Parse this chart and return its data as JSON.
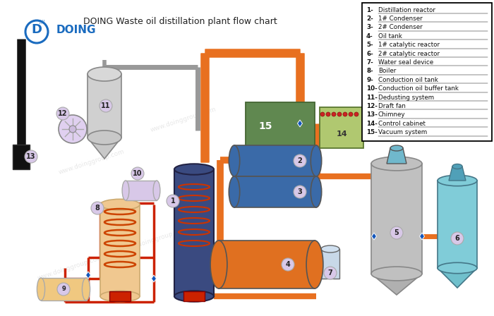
{
  "title": "DOING Waste oil distillation plant flow chart",
  "legend_items": [
    "1-  Distillation reactor",
    "2-  1# Condenser",
    "3-  2# Condenser",
    "4-  Oil tank",
    "5-  1# catalytic reactor",
    "6-  2# catalytic reactor",
    "7-  Water seal device",
    "8-  Boiler",
    "9-  Conduction oil tank",
    "10- Conduction oil buffer tank",
    "11- Dedusting system",
    "12- Draft fan",
    "13- Chimney",
    "14- Control cabinet",
    "15- Vacuum system"
  ],
  "bg_color": "#ffffff",
  "title_color": "#333333",
  "doing_color": "#1a6bbf",
  "pipe_color_orange": "#e87020",
  "pipe_color_red": "#cc2200",
  "pipe_color_gray": "#999999",
  "reactor_color": "#3a4a80",
  "condenser_color": "#3a6aa8",
  "oil_tank_color": "#e07020",
  "cat1_color": "#b8b8b8",
  "cat2_color": "#70b8cc",
  "boiler_fill": "#f0c8a0",
  "chimney_color": "#111111",
  "fan_color": "#d0c0e0",
  "buffer_tank_color": "#d8c8e8",
  "conduction_tank_color": "#f0c880",
  "vacuum_color": "#508858",
  "control_color": "#a8c860",
  "bubble_color": "#d8c8e8",
  "watermark": "www.doinggroup.com"
}
